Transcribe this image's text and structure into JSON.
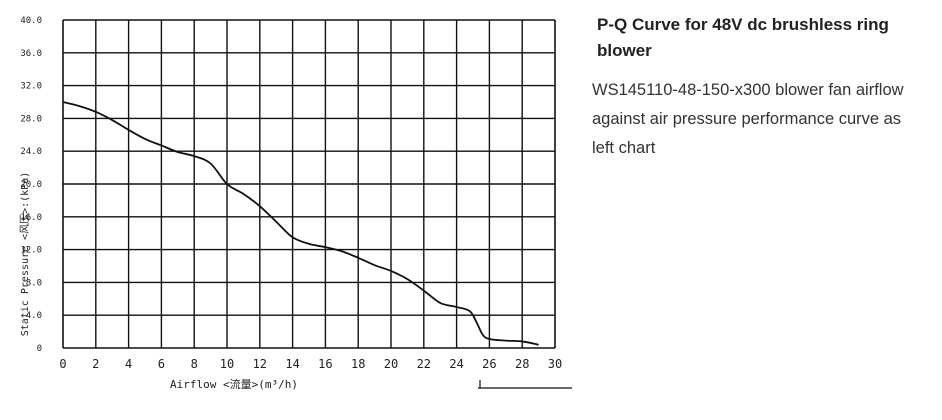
{
  "page": {
    "title": "P-Q Curve for 48V dc brushless ring blower",
    "description_lines": [
      "WS145110-48-150-x300 blower fan airflow",
      "against air pressure performance curve as",
      "left chart"
    ]
  },
  "chart_data": {
    "type": "line",
    "title": "",
    "xlabel": "Airflow <流量>(m³/h)",
    "ylabel": "Static Pressure <风压>:(kPa)",
    "xlim": [
      0,
      30
    ],
    "ylim": [
      0,
      40
    ],
    "x_ticks": [
      "0",
      "2",
      "4",
      "6",
      "8",
      "10",
      "12",
      "14",
      "16",
      "18",
      "20",
      "22",
      "24",
      "26",
      "28",
      "30"
    ],
    "y_ticks": [
      "0",
      "4.0",
      "8.0",
      "12.0",
      "16.0",
      "20.0",
      "24.0",
      "28.0",
      "32.0",
      "36.0",
      "40.0"
    ],
    "grid": true,
    "series": [
      {
        "x": [
          0,
          1,
          2,
          3,
          4,
          5,
          6,
          7,
          8,
          9,
          10,
          11,
          12,
          13,
          14,
          15,
          16,
          17,
          18,
          19,
          20,
          21,
          22,
          23,
          24,
          24.8,
          25.2,
          25.6,
          26,
          27,
          28,
          29
        ],
        "y": [
          30,
          29.5,
          28.8,
          27.8,
          26.6,
          25.5,
          24.7,
          23.9,
          23.4,
          22.5,
          20,
          18.8,
          17.3,
          15.4,
          13.5,
          12.7,
          12.3,
          11.8,
          11,
          10.1,
          9.4,
          8.4,
          7,
          5.5,
          5,
          4.5,
          3.2,
          1.6,
          1.1,
          0.9,
          0.8,
          0.4
        ],
        "color": "#111111"
      }
    ]
  }
}
